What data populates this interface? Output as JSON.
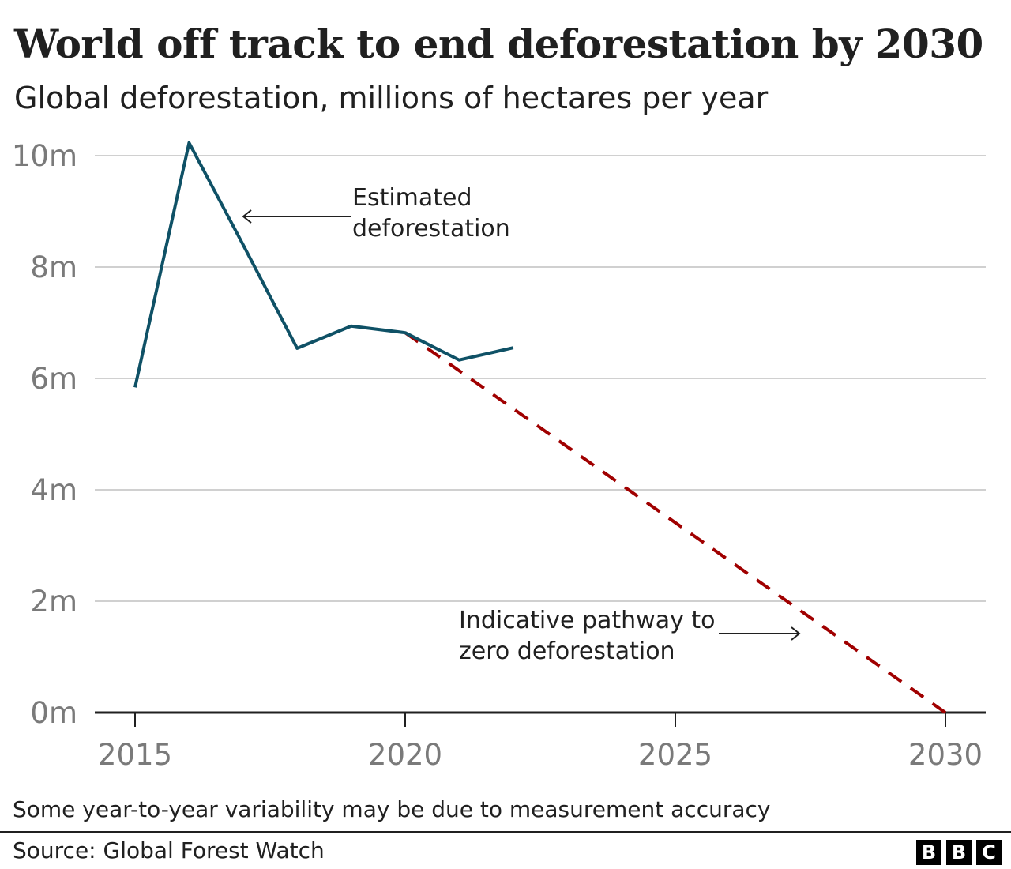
{
  "chart_data": {
    "type": "line",
    "title": "World off track to end deforestation by 2030",
    "subtitle": "Global deforestation, millions of hectares per year",
    "xlabel": "",
    "ylabel": "",
    "xlim": [
      2015,
      2030
    ],
    "ylim": [
      0,
      10
    ],
    "x_ticks": [
      2015,
      2020,
      2025,
      2030
    ],
    "x_tick_labels": [
      "2015",
      "2020",
      "2025",
      "2030"
    ],
    "y_ticks": [
      0,
      2,
      4,
      6,
      8,
      10
    ],
    "y_tick_labels": [
      "0m",
      "2m",
      "4m",
      "6m",
      "8m",
      "10m"
    ],
    "grid": "horizontal",
    "series": [
      {
        "style": "solid",
        "color": "#0f5166",
        "x": [
          2015,
          2016,
          2017,
          2018,
          2019,
          2020,
          2021,
          2022
        ],
        "values": [
          5.84,
          10.23,
          8.4,
          6.54,
          6.94,
          6.82,
          6.33,
          6.55
        ]
      },
      {
        "style": "dashed",
        "color": "#a00000",
        "x": [
          2020,
          2030
        ],
        "values": [
          6.82,
          0
        ]
      }
    ],
    "annotations": [
      {
        "lines": [
          "Estimated",
          "deforestation"
        ]
      },
      {
        "lines": [
          "Indicative pathway to",
          "zero deforestation"
        ]
      }
    ],
    "note": "Some year-to-year variability may be due to measurement accuracy",
    "source": "Source: Global Forest Watch"
  },
  "logo": [
    "B",
    "B",
    "C"
  ]
}
